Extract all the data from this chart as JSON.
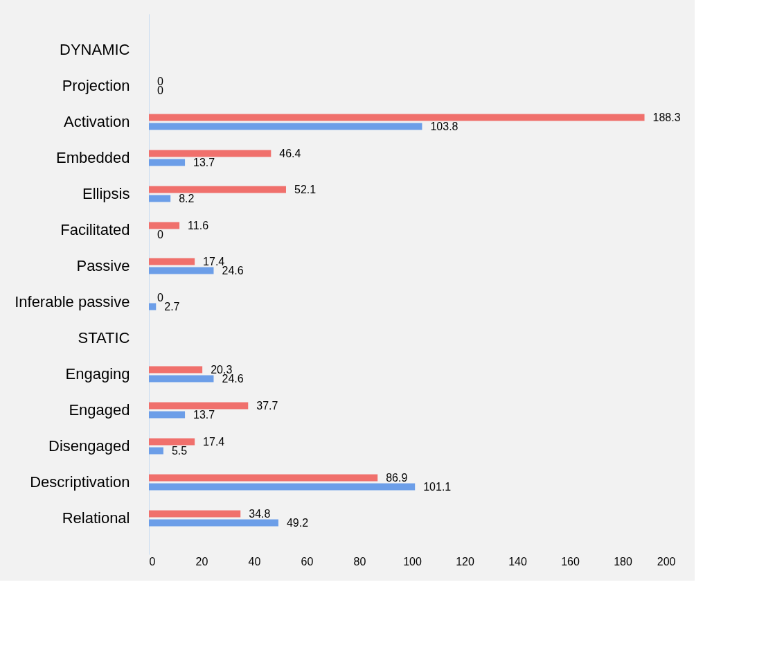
{
  "chart_data": {
    "type": "bar",
    "orientation": "horizontal",
    "categories": [
      "DYNAMIC",
      "Projection",
      "Activation",
      "Embedded",
      "Ellipsis",
      "Facilitated",
      "Passive",
      "Inferable passive",
      "STATIC",
      "Engaging",
      "Engaged",
      "Disengaged",
      "Descriptivation",
      "Relational"
    ],
    "series": [
      {
        "color": "#f0706c",
        "values": [
          null,
          0,
          188.3,
          46.4,
          52.1,
          11.6,
          17.4,
          0,
          null,
          20.3,
          37.7,
          17.4,
          86.9,
          34.8
        ]
      },
      {
        "color": "#6c9ee8",
        "values": [
          null,
          0,
          103.8,
          13.7,
          8.2,
          0,
          24.6,
          2.7,
          null,
          24.6,
          13.7,
          5.5,
          101.1,
          49.2
        ]
      }
    ],
    "xlim": [
      0,
      200
    ],
    "xticks": [
      0,
      20,
      40,
      60,
      80,
      100,
      120,
      140,
      160,
      180,
      200
    ],
    "data_labels": true,
    "grid": false
  }
}
